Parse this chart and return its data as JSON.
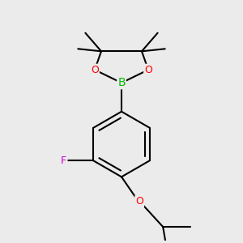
{
  "background_color": "#ebebeb",
  "bond_color": "#000000",
  "bond_width": 1.5,
  "atom_colors": {
    "B": "#00bb00",
    "O": "#ff0000",
    "F": "#cc00cc",
    "C": "#000000"
  },
  "font_size_atoms": 9,
  "font_size_methyl": 7.5
}
